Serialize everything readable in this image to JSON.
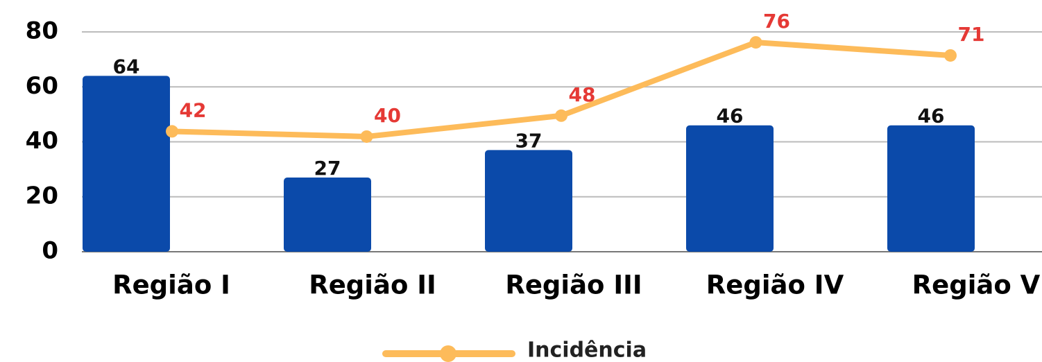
{
  "chart_data": {
    "type": "bar_line",
    "categories": [
      "Região I",
      "Região II",
      "Região III",
      "Região IV",
      "Região V"
    ],
    "series": [
      {
        "color": "#0b4aaa",
        "values": [
          64,
          27,
          37,
          46,
          46
        ]
      },
      {
        "name": "Incidência",
        "color": "#fdbb5a",
        "label_color": "#e53935",
        "type": "line",
        "axis": "y2",
        "values": [
          42,
          40,
          48,
          76,
          71
        ]
      }
    ],
    "ylim": [
      0,
      80
    ],
    "yticks": [
      0,
      20,
      40,
      60,
      80
    ],
    "y2lim": [
      -4,
      80
    ],
    "grid": true,
    "legend": "bottom"
  }
}
